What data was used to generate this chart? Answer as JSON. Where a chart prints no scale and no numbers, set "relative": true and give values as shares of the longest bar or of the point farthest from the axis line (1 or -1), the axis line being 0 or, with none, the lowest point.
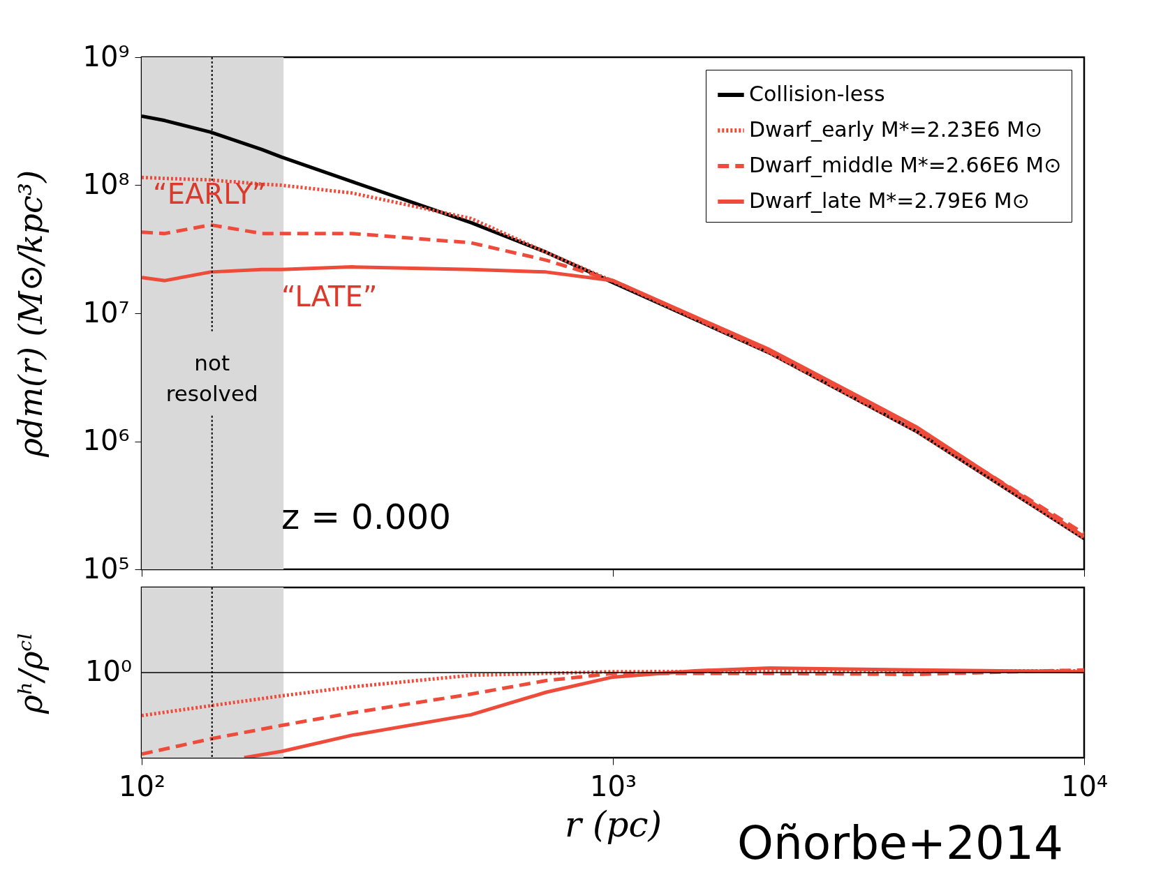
{
  "chart_data": [
    {
      "type": "line",
      "ylabel": "ρdm(r) (M⊙/kpc³)",
      "log": "xy",
      "xlim": [
        100,
        10000
      ],
      "ylim": [
        100000,
        1000000000
      ],
      "xticks": [
        {
          "value": 100,
          "label": null
        },
        {
          "value": 1000,
          "label": null
        },
        {
          "value": 10000,
          "label": null
        }
      ],
      "yticks": [
        {
          "value": 100000,
          "label": "10⁵"
        },
        {
          "value": 1000000,
          "label": "10⁶"
        },
        {
          "value": 10000000,
          "label": "10⁷"
        },
        {
          "value": 100000000,
          "label": "10⁸"
        },
        {
          "value": 1000000000,
          "label": "10⁹"
        }
      ],
      "tick_labels": "y",
      "legend": "top right",
      "x": [
        100,
        112,
        140,
        180,
        198,
        279,
        500,
        721,
        1000,
        2150,
        4400,
        10000
      ],
      "series": [
        {
          "name": "Collision-less",
          "color": "#000000",
          "line_style": "solid",
          "values": [
            347000000,
            320000000,
            260000000,
            190000000,
            166000000,
            107000000,
            51000000,
            30000000,
            17400000,
            4900000,
            1200000,
            174000
          ]
        },
        {
          "name": "Dwarf_early M*=2.23E6 M⊙",
          "color": "#ee4b3b",
          "line_style": "dotted",
          "values": [
            115000000,
            113000000,
            110000000,
            102000000,
            100000000,
            87000000,
            55000000,
            30000000,
            17800000,
            4900000,
            1200000,
            174000
          ]
        },
        {
          "name": "Dwarf_middle M*=2.66E6 M⊙",
          "color": "#ee4b3b",
          "line_style": "dashed",
          "values": [
            43000000,
            42000000,
            49000000,
            42000000,
            42000000,
            42000000,
            35500000,
            26000000,
            18000000,
            5000000,
            1250000,
            190000
          ]
        },
        {
          "name": "Dwarf_late M*=2.79E6 M⊙",
          "color": "#ee4b3b",
          "line_style": "solid",
          "values": [
            19000000,
            18000000,
            21000000,
            22000000,
            22000000,
            23000000,
            22000000,
            21000000,
            18000000,
            5200000,
            1300000,
            180000
          ]
        }
      ],
      "bands": [
        {
          "axis": "x",
          "from": 100,
          "to": 200,
          "color": "#d9d9d9"
        }
      ],
      "ref_lines": [
        {
          "axis": "x",
          "value": 141,
          "label": "not resolved",
          "line_style": "dotted",
          "color": "#000000"
        }
      ],
      "annotations": [
        "“EARLY”",
        "“LATE”",
        "z = 0.000"
      ]
    },
    {
      "type": "line",
      "xlabel": "r (pc)",
      "ylabel": "ρʰ/ρᶜˡ",
      "log": "x",
      "relative": true,
      "xlim": [
        100,
        10000
      ],
      "xticks": [
        {
          "value": 100,
          "label": "10²"
        },
        {
          "value": 1000,
          "label": "10³"
        },
        {
          "value": 10000,
          "label": "10⁴"
        }
      ],
      "series": [
        {
          "color": "#ee4b3b",
          "line_style": "dotted",
          "x": [
            100,
            140,
            198,
            279,
            500,
            1000,
            10000
          ],
          "values": [
            0.47,
            0.58,
            0.69,
            0.79,
            0.92,
            0.96,
            0.97
          ]
        },
        {
          "color": "#ee4b3b",
          "line_style": "dashed",
          "x": [
            100,
            140,
            198,
            279,
            500,
            721,
            1000,
            2150,
            4400,
            10000
          ],
          "values": [
            0.04,
            0.21,
            0.36,
            0.5,
            0.71,
            0.86,
            0.94,
            0.94,
            0.93,
            0.98
          ]
        },
        {
          "color": "#ee4b3b",
          "line_style": "solid",
          "x": [
            165,
            198,
            279,
            500,
            721,
            1000,
            1490,
            2150,
            4400,
            10000
          ],
          "values": [
            0,
            0.07,
            0.25,
            0.48,
            0.73,
            0.9,
            0.97,
            1,
            0.98,
            0.96
          ]
        }
      ],
      "bands": [
        {
          "axis": "x",
          "from": 100,
          "to": 200,
          "color": "#d9d9d9"
        }
      ],
      "ref_lines": [
        {
          "axis": "x",
          "value": 141,
          "line_style": "dotted",
          "color": "#000000"
        },
        {
          "axis": "y",
          "value": 0.95,
          "line_style": "solid",
          "color": "#000000"
        }
      ],
      "annotations": [
        "10⁰",
        "Oñorbe+2014"
      ]
    }
  ]
}
